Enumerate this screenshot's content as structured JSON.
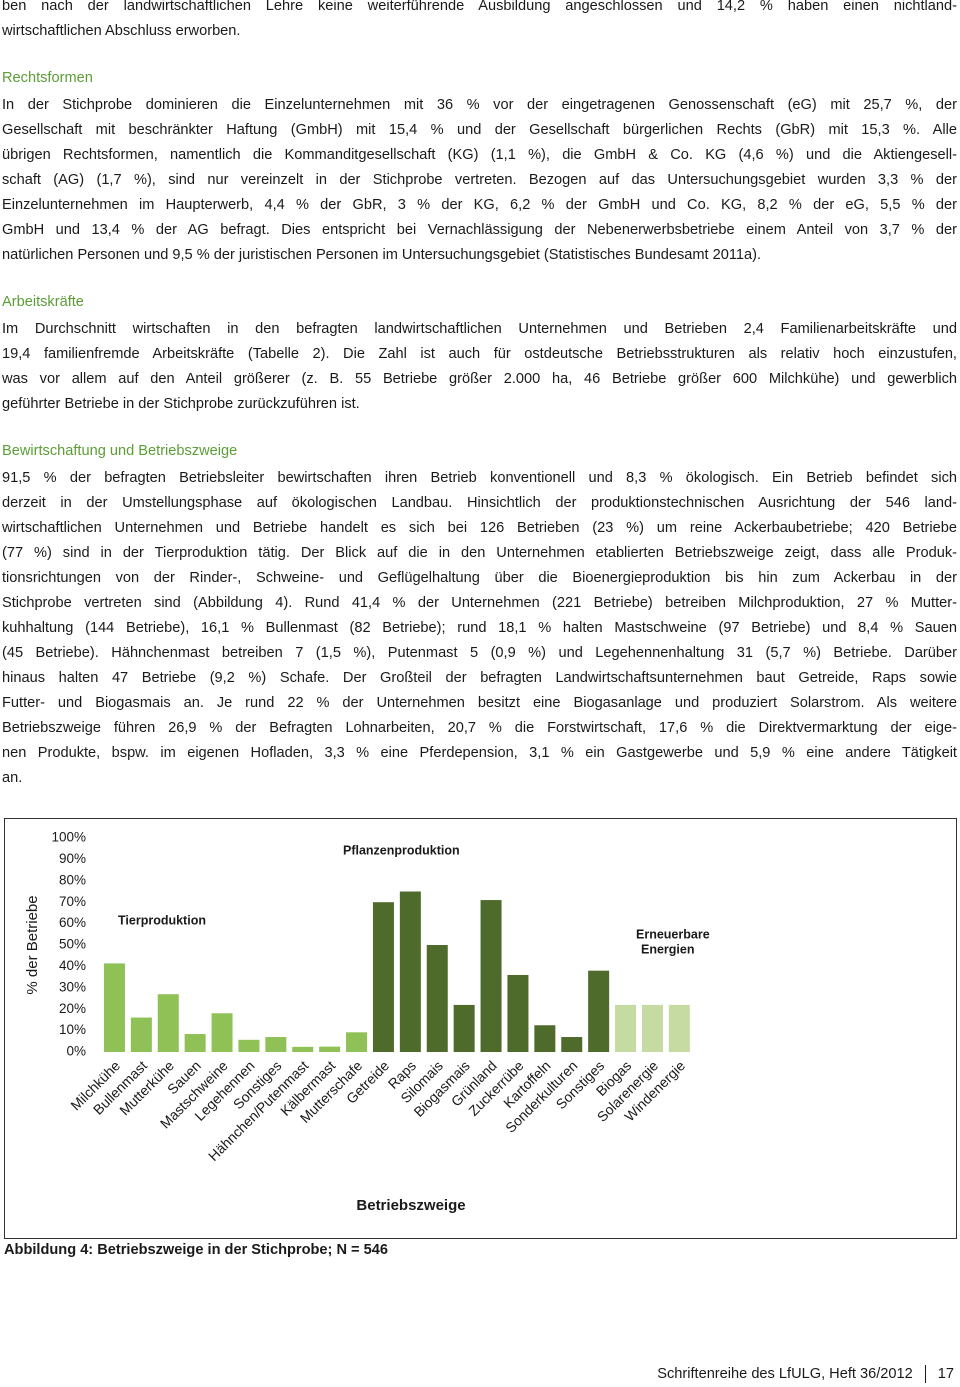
{
  "sections": [
    {
      "lines": [
        "ben nach der landwirtschaftlichen Lehre keine weiterführende Ausbildung angeschlossen und 14,2 % haben einen nichtland-",
        "wirtschaftlichen Abschluss erworben."
      ]
    },
    {
      "heading": "Rechtsformen",
      "lines": [
        "In der Stichprobe dominieren die Einzelunternehmen mit 36 % vor der eingetragenen Genossenschaft (eG) mit 25,7 %, der",
        "Gesellschaft mit beschränkter Haftung (GmbH) mit 15,4 % und der Gesellschaft bürgerlichen Rechts (GbR) mit 15,3 %. Alle",
        "übrigen Rechtsformen, namentlich die Kommanditgesellschaft (KG) (1,1 %), die GmbH & Co. KG (4,6 %) und die Aktiengesell-",
        "schaft (AG) (1,7 %), sind nur vereinzelt in der Stichprobe vertreten. Bezogen auf das Untersuchungsgebiet wurden 3,3 % der",
        "Einzelunternehmen im Haupterwerb, 4,4 % der GbR, 3 % der KG, 6,2 % der GmbH und Co. KG, 8,2 % der eG, 5,5 % der",
        "GmbH und 13,4 % der AG befragt. Dies entspricht bei Vernachlässigung der Nebenerwerbsbetriebe einem Anteil von 3,7 % der",
        "natürlichen Personen und 9,5 % der juristischen Personen im Untersuchungsgebiet (Statistisches Bundesamt 2011a)."
      ]
    },
    {
      "heading": "Arbeitskräfte",
      "lines": [
        "Im Durchschnitt wirtschaften in den befragten landwirtschaftlichen Unternehmen und Betrieben 2,4 Familienarbeitskräfte und",
        "19,4 familienfremde Arbeitskräfte (Tabelle 2). Die Zahl ist auch für ostdeutsche Betriebsstrukturen als relativ hoch einzustufen,",
        "was vor allem auf den Anteil größerer (z. B. 55 Betriebe größer 2.000 ha, 46 Betriebe größer 600 Milchkühe) und gewerblich",
        "geführter Betriebe in der Stichprobe zurückzuführen ist."
      ]
    },
    {
      "heading": "Bewirtschaftung und Betriebszweige",
      "lines": [
        "91,5 % der befragten Betriebsleiter bewirtschaften ihren Betrieb konventionell und 8,3 % ökologisch. Ein Betrieb befindet sich",
        "derzeit in der Umstellungsphase auf ökologischen Landbau. Hinsichtlich der produktionstechnischen Ausrichtung der 546 land-",
        "wirtschaftlichen Unternehmen und Betriebe handelt es sich bei 126 Betrieben (23 %) um reine Ackerbaubetriebe; 420 Betriebe",
        "(77 %) sind in der Tierproduktion tätig. Der Blick auf die in den Unternehmen etablierten Betriebszweige zeigt, dass alle Produk-",
        "tionsrichtungen von der Rinder-, Schweine- und Geflügelhaltung über die Bioenergieproduktion bis hin zum Ackerbau in der",
        "Stichprobe vertreten sind (Abbildung 4). Rund 41,4 % der Unternehmen (221 Betriebe) betreiben Milchproduktion, 27 % Mutter-",
        "kuhhaltung (144 Betriebe), 16,1 % Bullenmast (82 Betriebe); rund 18,1 % halten Mastschweine (97 Betriebe) und 8,4 % Sauen",
        "(45 Betriebe). Hähnchenmast betreiben 7 (1,5 %), Putenmast 5 (0,9 %) und Legehennenhaltung 31 (5,7 %) Betriebe. Darüber",
        "hinaus halten 47 Betriebe (9,2 %) Schafe. Der Großteil der befragten Landwirtschaftsunternehmen baut Getreide, Raps sowie",
        "Futter- und Biogasmais an. Je rund 22 % der Unternehmen besitzt eine Biogasanlage und produziert Solarstrom. Als weitere",
        "Betriebszweige führen 26,9 % der Befragten Lohnarbeiten, 20,7 % die Forstwirtschaft, 17,6 % die Direktvermarktung der eige-",
        "nen Produkte, bspw. im eigenen Hofladen, 3,3 % eine Pferdepension, 3,1 % ein Gastgewerbe und 5,9 % eine andere Tätigkeit",
        "an."
      ]
    }
  ],
  "chart_data": {
    "type": "bar",
    "y_label": "% der Betriebe",
    "x_label": "Betriebszweige",
    "annotations": [
      [
        "Tierproduktion"
      ],
      [
        "Pflanzenproduktion"
      ],
      [
        "Erneuerbare",
        "Energien"
      ]
    ],
    "categories": [
      "Milchkühe",
      "Bullenmast",
      "Mutterkühe",
      "Sauen",
      "Mastschweine",
      "Legehennen",
      "Sonstiges",
      "Hähnchen/Putenmast",
      "Kälbermast",
      "Mutterschafe",
      "Getreide",
      "Raps",
      "Silomais",
      "Biogasmais",
      "Grünland",
      "Zuckerrübe",
      "Kartoffeln",
      "Sonderkulturen",
      "Sonstiges",
      "Biogas",
      "Solarenergie",
      "Windenergie"
    ],
    "values": [
      41.4,
      16.1,
      27,
      8.4,
      18.1,
      5.7,
      7,
      2.4,
      2.5,
      9.2,
      70,
      75,
      50,
      22,
      71,
      36,
      12.5,
      7,
      38,
      22,
      22,
      22
    ],
    "colors": [
      "#8fc156",
      "#8fc156",
      "#8fc156",
      "#8fc156",
      "#8fc156",
      "#8fc156",
      "#8fc156",
      "#8fc156",
      "#8fc156",
      "#8fc156",
      "#4f6b2c",
      "#4f6b2c",
      "#4f6b2c",
      "#4f6b2c",
      "#4f6b2c",
      "#4f6b2c",
      "#4f6b2c",
      "#4f6b2c",
      "#4f6b2c",
      "#c5dba2",
      "#c5dba2",
      "#c5dba2"
    ],
    "ylim": [
      0,
      100
    ],
    "yticks": [
      {
        "value": 0,
        "label": "0%"
      },
      {
        "value": 10,
        "label": "10%"
      },
      {
        "value": 20,
        "label": "20%"
      },
      {
        "value": 30,
        "label": "30%"
      },
      {
        "value": 40,
        "label": "40%"
      },
      {
        "value": 50,
        "label": "50%"
      },
      {
        "value": 60,
        "label": "60%"
      },
      {
        "value": 70,
        "label": "70%"
      },
      {
        "value": 80,
        "label": "80%"
      },
      {
        "value": 90,
        "label": "90%"
      },
      {
        "value": 100,
        "label": "100%"
      }
    ],
    "grid": false
  },
  "caption": "Abbildung 4: Betriebszweige in der Stichprobe; N = 546",
  "footer": {
    "series": "Schriftenreihe des LfULG, Heft 36/2012",
    "page": "17"
  }
}
